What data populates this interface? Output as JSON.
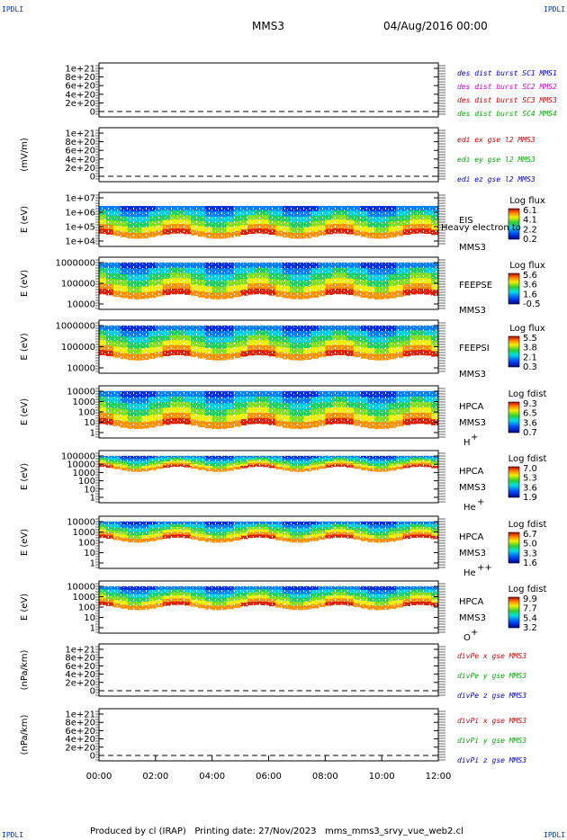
{
  "header": {
    "corner_text": "IPDLI",
    "title": "MMS3",
    "date": "04/Aug/2016 00:00"
  },
  "footer": {
    "text": "Produced by cl (IRAP)   Printing date: 27/Nov/2023   mms_mms3_srvy_vue_web2.cl"
  },
  "chart_data": {
    "type": "heatmap",
    "x_ticks": [
      "00:00",
      "02:00",
      "04:00",
      "06:00",
      "08:00",
      "10:00",
      "12:00"
    ],
    "xlim": [
      "00:00",
      "12:00"
    ],
    "panels": [
      {
        "id": "p1",
        "kind": "line",
        "ylabel": "",
        "yticks": [
          "1e+21",
          "8e+20",
          "6e+20",
          "4e+20",
          "2e+20",
          "0"
        ],
        "legend": [
          {
            "text": "des dist burst SC1 MMS1",
            "color": "#0000cc"
          },
          {
            "text": "des dist burst SC2 MMS2",
            "color": "#cc00cc"
          },
          {
            "text": "des dist burst SC3 MMS3",
            "color": "#cc0000"
          },
          {
            "text": "des dist burst SC4 MMS4",
            "color": "#00aa00"
          }
        ]
      },
      {
        "id": "p2",
        "kind": "line",
        "ylabel": "(mV/m)",
        "yticks": [
          "1e+21",
          "8e+20",
          "6e+20",
          "4e+20",
          "2e+20",
          "0"
        ],
        "legend": [
          {
            "text": "edi ex gse l2 MMS3",
            "color": "#cc0000"
          },
          {
            "text": "edi ey gse l2 MMS3",
            "color": "#00aa00"
          },
          {
            "text": "edi ez gse l2 MMS3",
            "color": "#0000cc"
          }
        ]
      },
      {
        "id": "p3",
        "kind": "spec",
        "ylabel": "E (eV)",
        "yticks": [
          "1e+07",
          "1e+06",
          "1e+05",
          "1e+04"
        ],
        "labels": [
          "EIS",
          "MMS3"
        ],
        "overlay": "Heavy electron to",
        "cbar_title": "Log flux",
        "cbar_ticks": [
          "6.1",
          "4.1",
          "2.2",
          "0.2"
        ]
      },
      {
        "id": "p4",
        "kind": "spec",
        "ylabel": "E (eV)",
        "yticks": [
          "1000000",
          "100000",
          "10000"
        ],
        "labels": [
          "FEEPSE",
          "MMS3"
        ],
        "cbar_title": "Log flux",
        "cbar_ticks": [
          "5.6",
          "3.6",
          "1.6",
          "-0.5"
        ]
      },
      {
        "id": "p5",
        "kind": "spec",
        "ylabel": "E (eV)",
        "yticks": [
          "1000000",
          "100000",
          "10000"
        ],
        "labels": [
          "FEEPSI",
          "MMS3"
        ],
        "cbar_title": "Log flux",
        "cbar_ticks": [
          "5.5",
          "3.8",
          "2.1",
          "0.3"
        ]
      },
      {
        "id": "p6",
        "kind": "spec",
        "ylabel": "E (eV)",
        "yticks": [
          "10000",
          "1000",
          "100",
          "10",
          "1"
        ],
        "labels": [
          "HPCA",
          "MMS3"
        ],
        "species": "H",
        "charge": "+",
        "cbar_title": "Log fdist",
        "cbar_ticks": [
          "9.3",
          "6.5",
          "3.6",
          "0.7"
        ]
      },
      {
        "id": "p7",
        "kind": "spec",
        "ylabel": "E (eV)",
        "yticks": [
          "100000",
          "10000",
          "1000",
          "100",
          "10",
          "1"
        ],
        "labels": [
          "HPCA",
          "MMS3"
        ],
        "species": "He",
        "charge": "+",
        "cbar_title": "Log fdist",
        "cbar_ticks": [
          "7.0",
          "5.3",
          "3.6",
          "1.9"
        ]
      },
      {
        "id": "p8",
        "kind": "spec",
        "ylabel": "E (eV)",
        "yticks": [
          "10000",
          "1000",
          "100",
          "10",
          "1"
        ],
        "labels": [
          "HPCA",
          "MMS3"
        ],
        "species": "He",
        "charge": "++",
        "cbar_title": "Log fdist",
        "cbar_ticks": [
          "6.7",
          "5.0",
          "3.3",
          "1.6"
        ]
      },
      {
        "id": "p9",
        "kind": "spec",
        "ylabel": "E (eV)",
        "yticks": [
          "10000",
          "1000",
          "100",
          "10",
          "1"
        ],
        "labels": [
          "HPCA",
          "MMS3"
        ],
        "species": "O",
        "charge": "+",
        "cbar_title": "Log fdist",
        "cbar_ticks": [
          "9.9",
          "7.7",
          "5.4",
          "3.2"
        ]
      },
      {
        "id": "p10",
        "kind": "line",
        "ylabel": "(nPa/km)",
        "yticks": [
          "1e+21",
          "8e+20",
          "6e+20",
          "4e+20",
          "2e+20",
          "0"
        ],
        "legend": [
          {
            "text": "divPe x gse MMS3",
            "color": "#cc0000"
          },
          {
            "text": "divPe y gse MMS3",
            "color": "#00aa00"
          },
          {
            "text": "divPe z gse MMS3",
            "color": "#0000cc"
          }
        ]
      },
      {
        "id": "p11",
        "kind": "line",
        "ylabel": "(nPa/km)",
        "yticks": [
          "1e+21",
          "8e+20",
          "6e+20",
          "4e+20",
          "2e+20",
          "0"
        ],
        "legend": [
          {
            "text": "divPi x gse MMS3",
            "color": "#cc0000"
          },
          {
            "text": "divPi y gse MMS3",
            "color": "#00aa00"
          },
          {
            "text": "divPi z gse MMS3",
            "color": "#0000cc"
          }
        ]
      }
    ]
  }
}
